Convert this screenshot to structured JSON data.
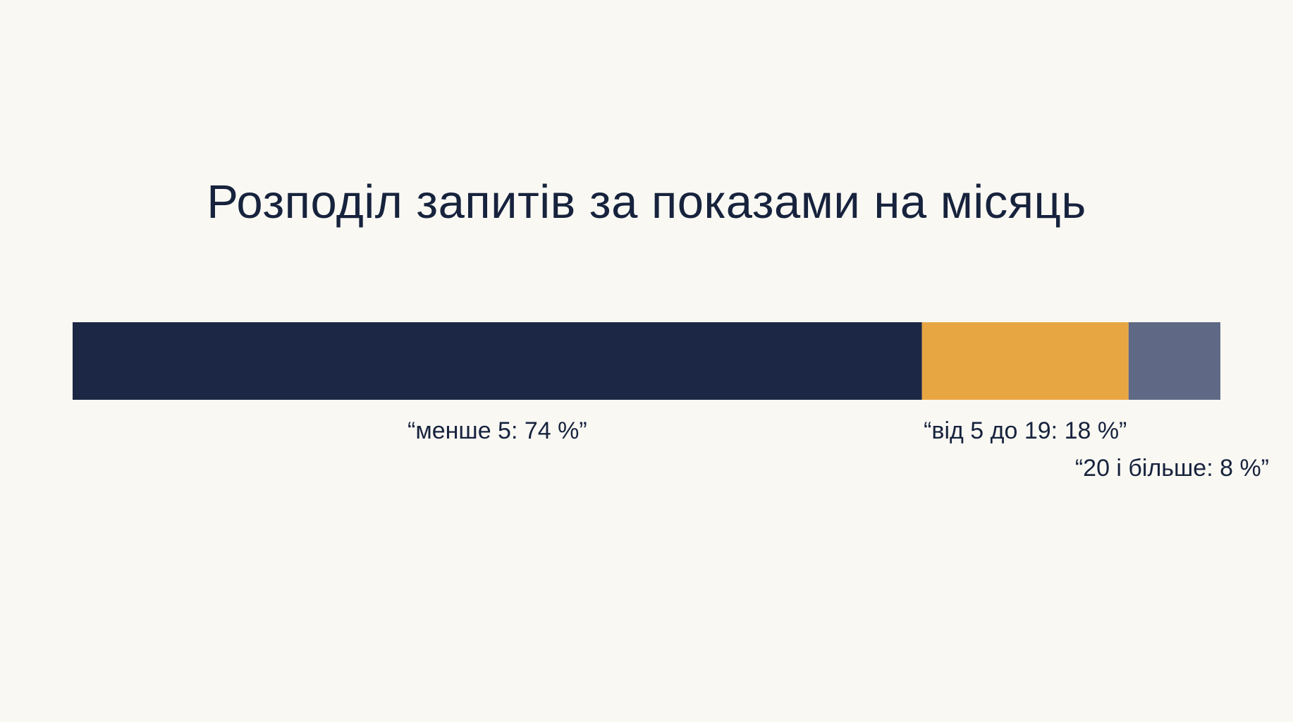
{
  "chart_data": {
    "type": "bar",
    "orientation": "horizontal-stacked",
    "title": "Розподіл запитів за показами на місяць",
    "xlim": [
      0,
      100
    ],
    "grid": false,
    "legend": "none",
    "segments": [
      {
        "label": "“менше 5: 74 %”",
        "value": 74,
        "color": "#1b2745"
      },
      {
        "label": "“від 5 до 19: 18 %”",
        "value": 18,
        "color": "#e8a643"
      },
      {
        "label": "“20 і більше: 8 %”",
        "value": 8,
        "color": "#5f6985"
      }
    ],
    "text_color": "#17233d",
    "background": "#f9f8f3"
  }
}
